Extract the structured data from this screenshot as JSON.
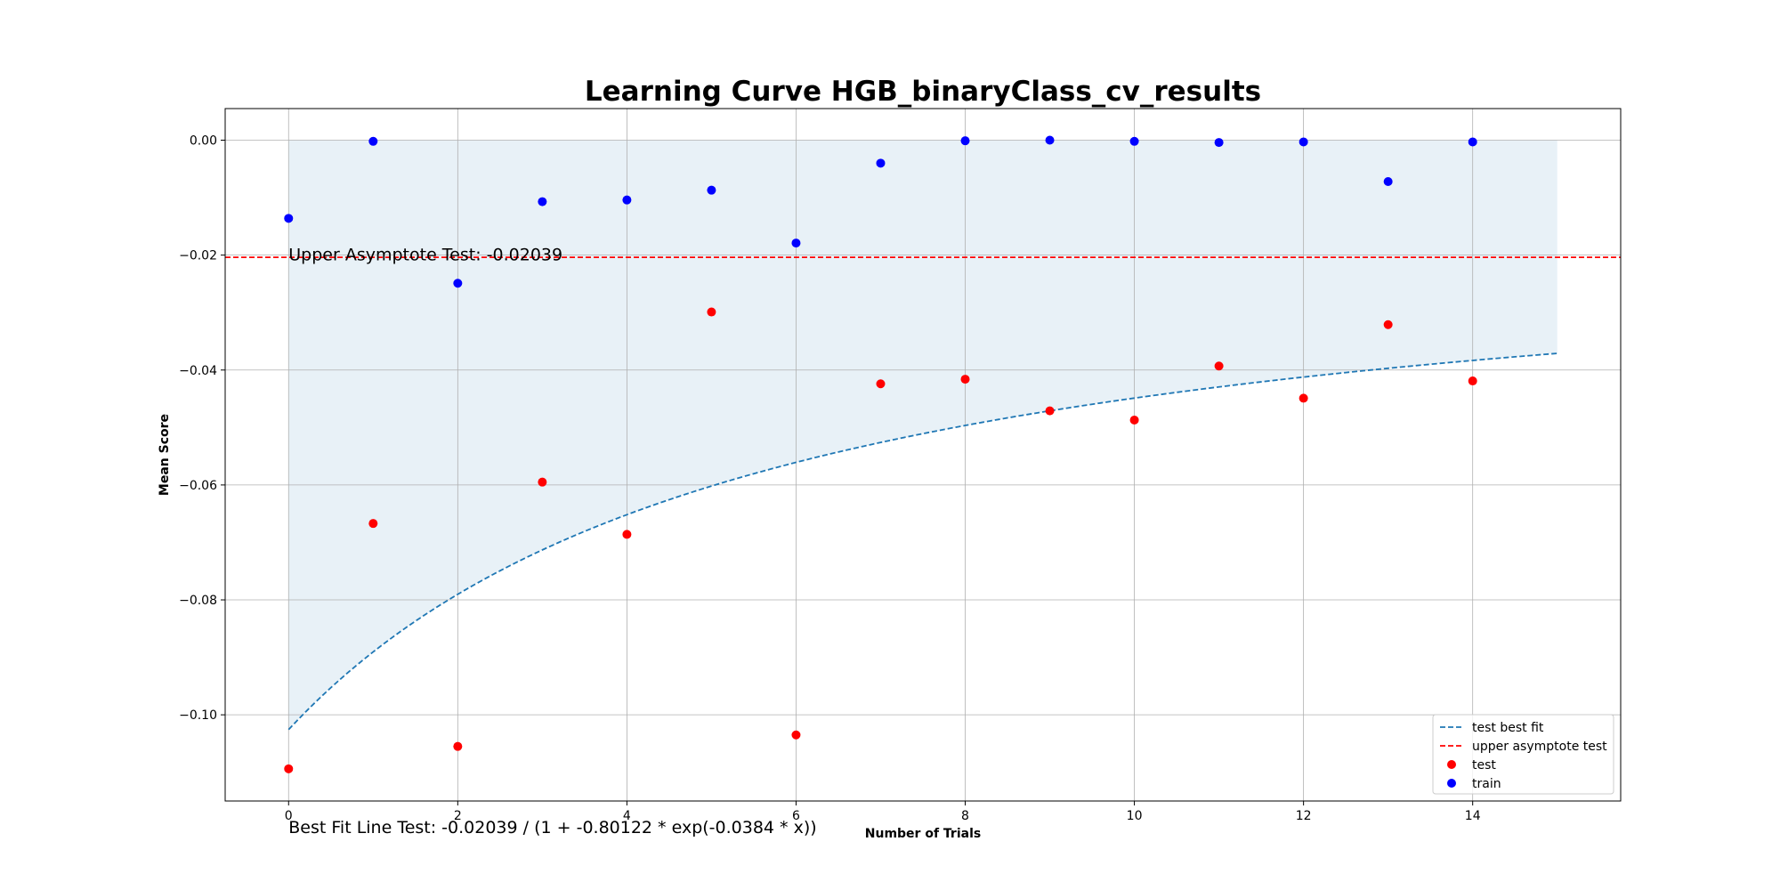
{
  "chart_data": {
    "type": "scatter",
    "title": "Learning Curve HGB_binaryClass_cv_results",
    "xlabel": "Number of Trials",
    "ylabel": "Mean Score",
    "xlim": [
      -0.75,
      15.75
    ],
    "ylim": [
      -0.115,
      0.0055
    ],
    "xticks": [
      0,
      2,
      4,
      6,
      8,
      10,
      12,
      14
    ],
    "yticks": [
      0.0,
      -0.02,
      -0.04,
      -0.06,
      -0.08,
      -0.1
    ],
    "ytick_labels": [
      "0.00",
      "−0.02",
      "−0.04",
      "−0.06",
      "−0.08",
      "−0.10"
    ],
    "grid": true,
    "legend_position": "lower-right",
    "series": [
      {
        "name": "test",
        "kind": "scatter",
        "color": "#ff0000",
        "x": [
          0,
          1,
          2,
          3,
          4,
          5,
          6,
          7,
          8,
          9,
          10,
          11,
          12,
          13,
          14
        ],
        "y": [
          -0.1094,
          -0.0667,
          -0.1055,
          -0.0595,
          -0.0686,
          -0.0299,
          -0.1035,
          -0.0424,
          -0.0416,
          -0.0471,
          -0.0487,
          -0.0393,
          -0.0449,
          -0.0321,
          -0.0419
        ]
      },
      {
        "name": "train",
        "kind": "scatter",
        "color": "#0000ff",
        "x": [
          0,
          1,
          2,
          3,
          4,
          5,
          6,
          7,
          8,
          9,
          10,
          11,
          12,
          13,
          14
        ],
        "y": [
          -0.0136,
          -0.0002,
          -0.0249,
          -0.0107,
          -0.0104,
          -0.0087,
          -0.0179,
          -0.004,
          -0.0001,
          0.0,
          -0.0002,
          -0.0004,
          -0.0003,
          -0.0072,
          -0.0003
        ]
      },
      {
        "name": "test best fit",
        "kind": "line",
        "style": "dashed",
        "color": "#1f77b4",
        "fit": {
          "a": -0.02039,
          "b": -0.80122,
          "c": -0.0384
        },
        "x_range": [
          0,
          15
        ]
      },
      {
        "name": "upper asymptote test",
        "kind": "hline",
        "style": "dashed",
        "color": "#ff0000",
        "y": -0.02039
      }
    ],
    "fill_band": {
      "color": "#1f77b4",
      "opacity": 0.1,
      "x_range": [
        0,
        15
      ],
      "upper": 0.0
    },
    "annotations": [
      {
        "name": "upper-asymptote-text",
        "text": "Upper Asymptote Test: -0.02039",
        "x": 0,
        "y": -0.0198
      },
      {
        "name": "best-fit-text",
        "text": "Best Fit Line Test: -0.02039 / (1 + -0.80122 * exp(-0.0384 * x))",
        "x": 0,
        "y": -0.1195
      }
    ],
    "legend": [
      "test best fit",
      "upper asymptote test",
      "test",
      "train"
    ]
  }
}
